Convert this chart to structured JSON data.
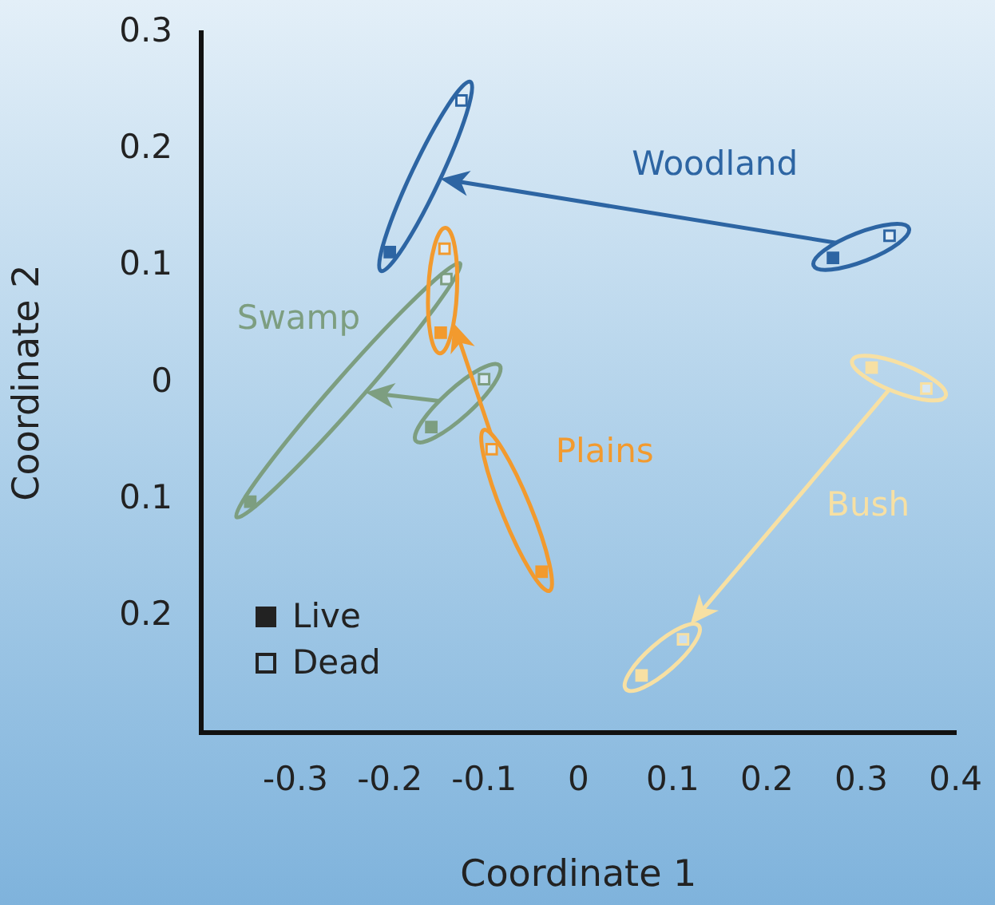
{
  "chart_data": {
    "type": "scatter",
    "xlabel": "Coordinate 1",
    "ylabel": "Coordinate 2",
    "xlim": [
      -0.4,
      0.4
    ],
    "xticks": [
      -0.3,
      -0.2,
      -0.1,
      0,
      0.1,
      0.2,
      0.3,
      0.4
    ],
    "ylim": [
      -0.3,
      0.3
    ],
    "yticks": [
      {
        "value": -0.2,
        "label": "0.2"
      },
      {
        "value": -0.1,
        "label": "0.1"
      },
      0,
      0.1,
      0.2,
      0.3
    ],
    "marker": "square",
    "grid": false,
    "annotations": [
      "Live",
      "Dead"
    ],
    "series": [
      {
        "name": "Woodland",
        "color": "#2d65a3",
        "x": [
          0.27,
          0.33,
          -0.2,
          -0.124
        ],
        "values": [
          0.107,
          0.126,
          0.112,
          0.242
        ]
      },
      {
        "name": "Swamp",
        "color": "#7d9e80",
        "x": [
          -0.156,
          -0.1,
          -0.348,
          -0.14
        ],
        "values": [
          -0.038,
          0.003,
          -0.102,
          0.089
        ]
      },
      {
        "name": "Plains",
        "color": "#f29a2e",
        "x": [
          -0.039,
          -0.092,
          -0.146,
          -0.142
        ],
        "values": [
          -0.162,
          -0.057,
          0.043,
          0.115
        ]
      },
      {
        "name": "Bush",
        "color": "#f7e0a3",
        "x": [
          0.311,
          0.369,
          0.067,
          0.111
        ],
        "values": [
          0.013,
          -0.005,
          -0.251,
          -0.22
        ]
      }
    ]
  }
}
